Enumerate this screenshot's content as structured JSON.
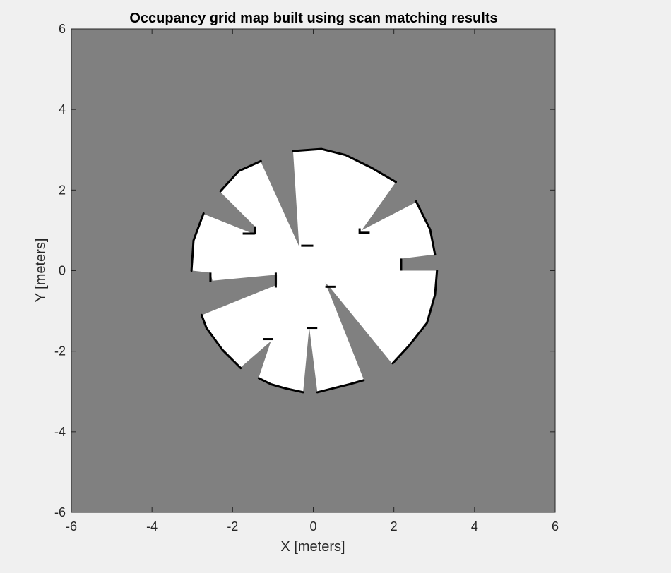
{
  "chart_data": {
    "type": "heatmap",
    "title": "Occupancy grid map built using scan matching results",
    "xlabel": "X [meters]",
    "ylabel": "Y [meters]",
    "xlim": [
      -6,
      6
    ],
    "ylim": [
      -6,
      6
    ],
    "xticks": [
      "-6",
      "-4",
      "-2",
      "0",
      "2",
      "4",
      "6"
    ],
    "yticks": [
      "6",
      "4",
      "2",
      "0",
      "-2",
      "-4",
      "-6"
    ],
    "grid": false,
    "colors": {
      "unknown": "#808080",
      "free": "#ffffff",
      "occupied": "#000000",
      "figure_bg": "#f0f0f0",
      "axes_edge": "#262626"
    },
    "free_region_outline": [
      [
        -0.5,
        2.95
      ],
      [
        0.2,
        3.0
      ],
      [
        0.8,
        2.85
      ],
      [
        1.4,
        2.55
      ],
      [
        2.05,
        2.2
      ],
      [
        1.2,
        1.0
      ],
      [
        2.55,
        1.7
      ],
      [
        2.9,
        1.0
      ],
      [
        3.0,
        0.4
      ],
      [
        2.2,
        0.3
      ],
      [
        2.2,
        0.0
      ],
      [
        3.05,
        0.0
      ],
      [
        3.0,
        -0.6
      ],
      [
        2.8,
        -1.3
      ],
      [
        2.35,
        -1.85
      ],
      [
        1.95,
        -2.3
      ],
      [
        0.4,
        -0.4
      ],
      [
        0.3,
        -0.3
      ],
      [
        1.25,
        -2.7
      ],
      [
        0.9,
        -2.8
      ],
      [
        0.5,
        -2.9
      ],
      [
        0.1,
        -3.0
      ],
      [
        -0.1,
        -1.4
      ],
      [
        -0.25,
        -3.0
      ],
      [
        -0.7,
        -2.9
      ],
      [
        -1.05,
        -2.8
      ],
      [
        -1.35,
        -2.65
      ],
      [
        -1.05,
        -1.75
      ],
      [
        -1.8,
        -2.4
      ],
      [
        -2.25,
        -1.95
      ],
      [
        -2.65,
        -1.4
      ],
      [
        -2.75,
        -1.1
      ],
      [
        -0.9,
        -0.35
      ],
      [
        -0.9,
        -0.1
      ],
      [
        -2.5,
        -0.25
      ],
      [
        -2.55,
        -0.05
      ],
      [
        -3.0,
        0.0
      ],
      [
        -2.95,
        0.75
      ],
      [
        -2.7,
        1.4
      ],
      [
        -1.45,
        0.9
      ],
      [
        -1.45,
        1.1
      ],
      [
        -2.3,
        1.95
      ],
      [
        -1.85,
        2.45
      ],
      [
        -1.3,
        2.7
      ],
      [
        -0.35,
        0.6
      ]
    ],
    "occupied_boundary": [
      [
        [
          -0.5,
          2.97
        ],
        [
          0.2,
          3.02
        ],
        [
          0.8,
          2.87
        ],
        [
          1.45,
          2.55
        ],
        [
          2.05,
          2.2
        ]
      ],
      [
        [
          2.55,
          1.72
        ],
        [
          2.9,
          1.02
        ],
        [
          3.02,
          0.4
        ]
      ],
      [
        [
          3.07,
          0.0
        ],
        [
          3.02,
          -0.6
        ],
        [
          2.82,
          -1.3
        ],
        [
          2.37,
          -1.87
        ],
        [
          1.97,
          -2.3
        ]
      ],
      [
        [
          1.25,
          -2.72
        ],
        [
          0.9,
          -2.82
        ],
        [
          0.5,
          -2.92
        ],
        [
          0.1,
          -3.02
        ]
      ],
      [
        [
          -0.25,
          -3.02
        ],
        [
          -0.7,
          -2.92
        ],
        [
          -1.05,
          -2.82
        ],
        [
          -1.35,
          -2.67
        ]
      ],
      [
        [
          -1.8,
          -2.42
        ],
        [
          -2.25,
          -1.97
        ],
        [
          -2.65,
          -1.42
        ],
        [
          -2.77,
          -1.1
        ]
      ],
      [
        [
          -3.02,
          0.0
        ],
        [
          -2.97,
          0.75
        ],
        [
          -2.72,
          1.42
        ]
      ],
      [
        [
          -2.3,
          1.97
        ],
        [
          -1.85,
          2.47
        ],
        [
          -1.3,
          2.72
        ]
      ]
    ],
    "occupied_segments": [
      [
        [
          -0.3,
          0.62
        ],
        [
          0.0,
          0.62
        ]
      ],
      [
        [
          0.3,
          -0.4
        ],
        [
          0.55,
          -0.4
        ]
      ],
      [
        [
          -0.15,
          -1.42
        ],
        [
          0.1,
          -1.42
        ]
      ],
      [
        [
          -0.93,
          -0.05
        ],
        [
          -0.93,
          -0.42
        ]
      ],
      [
        [
          -1.0,
          -1.7
        ],
        [
          -1.25,
          -1.7
        ]
      ],
      [
        [
          -1.45,
          1.1
        ],
        [
          -1.45,
          0.9
        ]
      ],
      [
        [
          -1.45,
          0.92
        ],
        [
          -1.75,
          0.92
        ]
      ],
      [
        [
          1.15,
          1.05
        ],
        [
          1.15,
          0.92
        ]
      ],
      [
        [
          1.15,
          0.94
        ],
        [
          1.4,
          0.94
        ]
      ],
      [
        [
          2.18,
          0.3
        ],
        [
          2.18,
          0.0
        ]
      ],
      [
        [
          -2.55,
          -0.05
        ],
        [
          -2.55,
          -0.28
        ]
      ]
    ]
  }
}
